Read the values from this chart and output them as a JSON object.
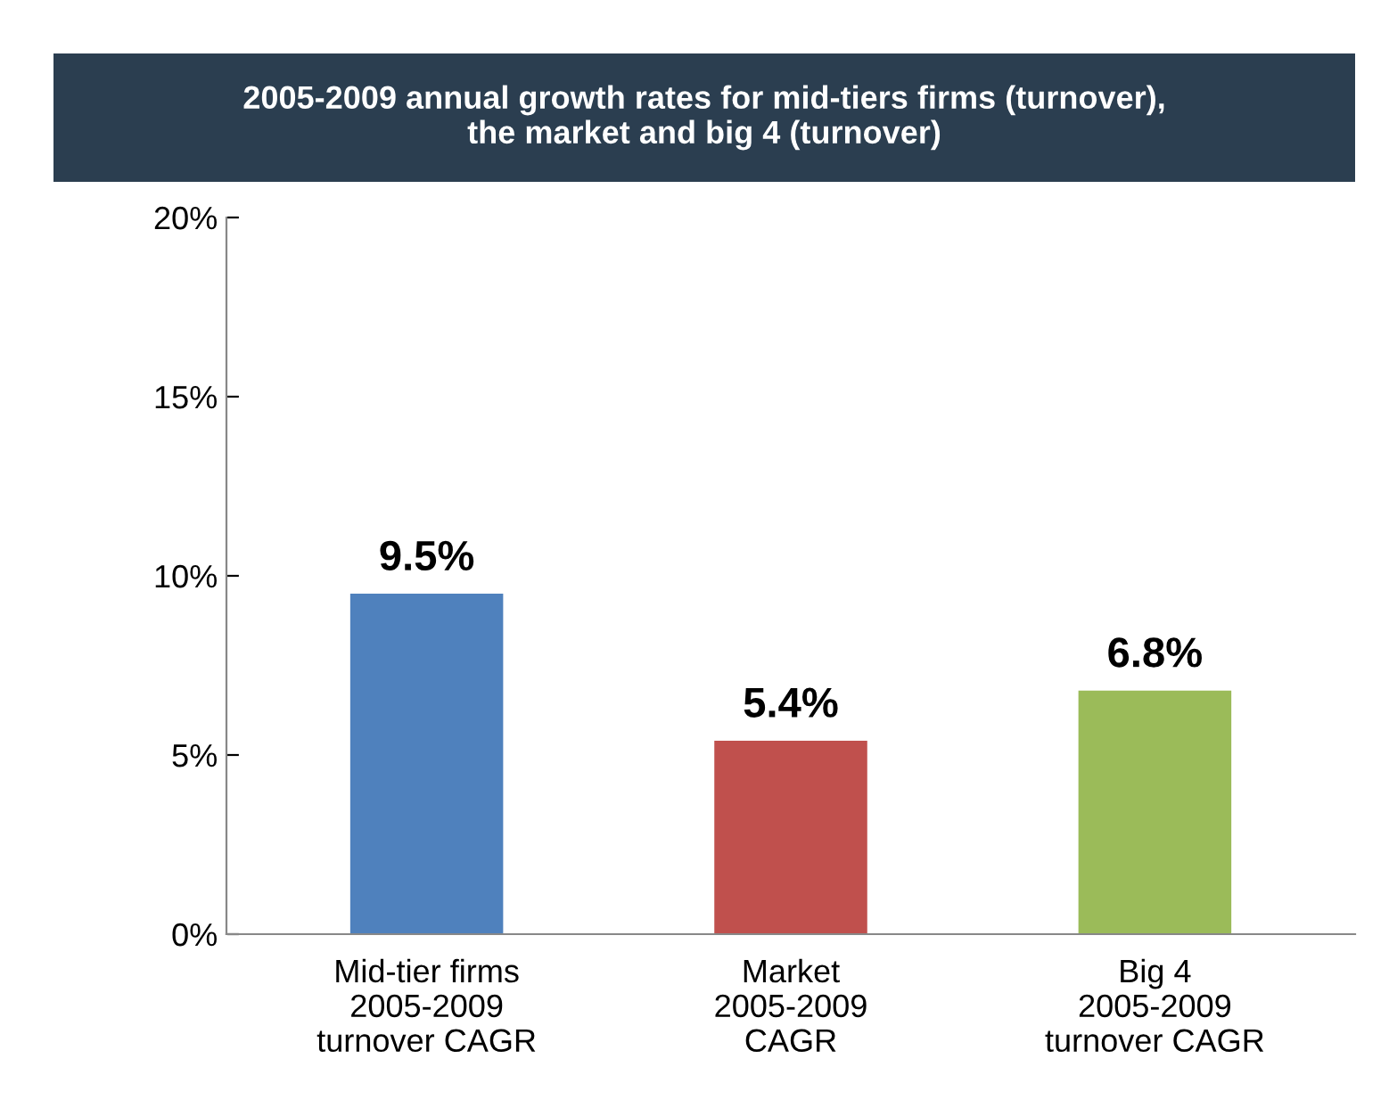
{
  "chart_data": {
    "type": "bar",
    "title": "2005-2009 annual growth rates for mid-tiers firms (turnover),\nthe market and big 4 (turnover)",
    "categories": [
      "Mid-tier firms\n2005-2009\nturnover CAGR",
      "Market\n2005-2009\nCAGR",
      "Big 4\n2005-2009\nturnover CAGR"
    ],
    "values": [
      9.5,
      5.4,
      6.8
    ],
    "colors": [
      "#4f81bd",
      "#c0504d",
      "#9bbb59"
    ],
    "value_labels": [
      "9.5%",
      "5.4%",
      "6.8%"
    ],
    "ylim": [
      0,
      20
    ],
    "yticks": [
      {
        "value": 0,
        "label": "0%"
      },
      {
        "value": 5,
        "label": "5%"
      },
      {
        "value": 10,
        "label": "10%"
      },
      {
        "value": 15,
        "label": "15%"
      },
      {
        "value": 20,
        "label": "20%"
      }
    ],
    "grid": false,
    "legend": false
  }
}
